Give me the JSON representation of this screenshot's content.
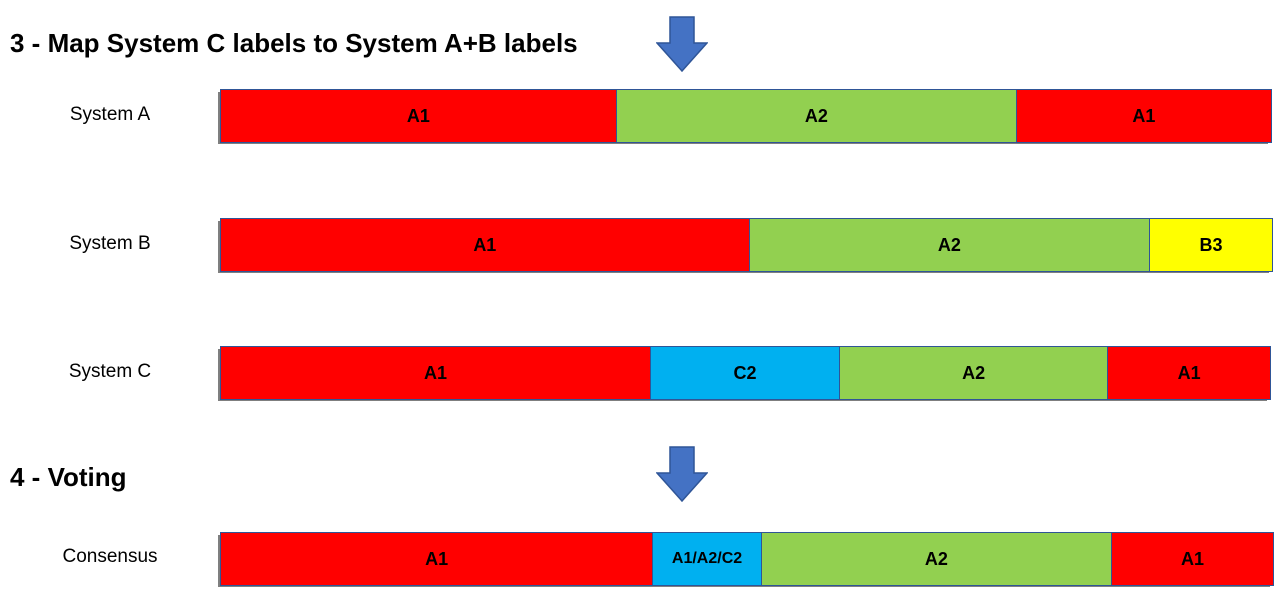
{
  "step3": {
    "title": "3 - Map System C labels to System A+B labels"
  },
  "step4": {
    "title": "4 - Voting"
  },
  "icons": {
    "arrow": "down-arrow-icon",
    "arrow_color": "#4472c4"
  },
  "colors": {
    "A1": "#ff0000",
    "A2": "#92d050",
    "B3": "#ffff00",
    "C2": "#00b0f0",
    "A1/A2/C2": "#00b0f0",
    "border": "#2f5597"
  },
  "rows": [
    {
      "label": "System A",
      "segments": [
        {
          "label": "A1",
          "fraction": 0.377
        },
        {
          "label": "A2",
          "fraction": 0.381
        },
        {
          "label": "A1",
          "fraction": 0.242
        }
      ]
    },
    {
      "label": "System B",
      "segments": [
        {
          "label": "A1",
          "fraction": 0.503
        },
        {
          "label": "A2",
          "fraction": 0.381
        },
        {
          "label": "B3",
          "fraction": 0.116
        }
      ]
    },
    {
      "label": "System C",
      "segments": [
        {
          "label": "A1",
          "fraction": 0.41
        },
        {
          "label": "C2",
          "fraction": 0.18
        },
        {
          "label": "A2",
          "fraction": 0.256
        },
        {
          "label": "A1",
          "fraction": 0.154
        }
      ]
    },
    {
      "label": "Consensus",
      "segments": [
        {
          "label": "A1",
          "fraction": 0.411
        },
        {
          "label": "A1/A2/C2",
          "fraction": 0.103
        },
        {
          "label": "A2",
          "fraction": 0.333
        },
        {
          "label": "A1",
          "fraction": 0.153
        }
      ]
    }
  ]
}
